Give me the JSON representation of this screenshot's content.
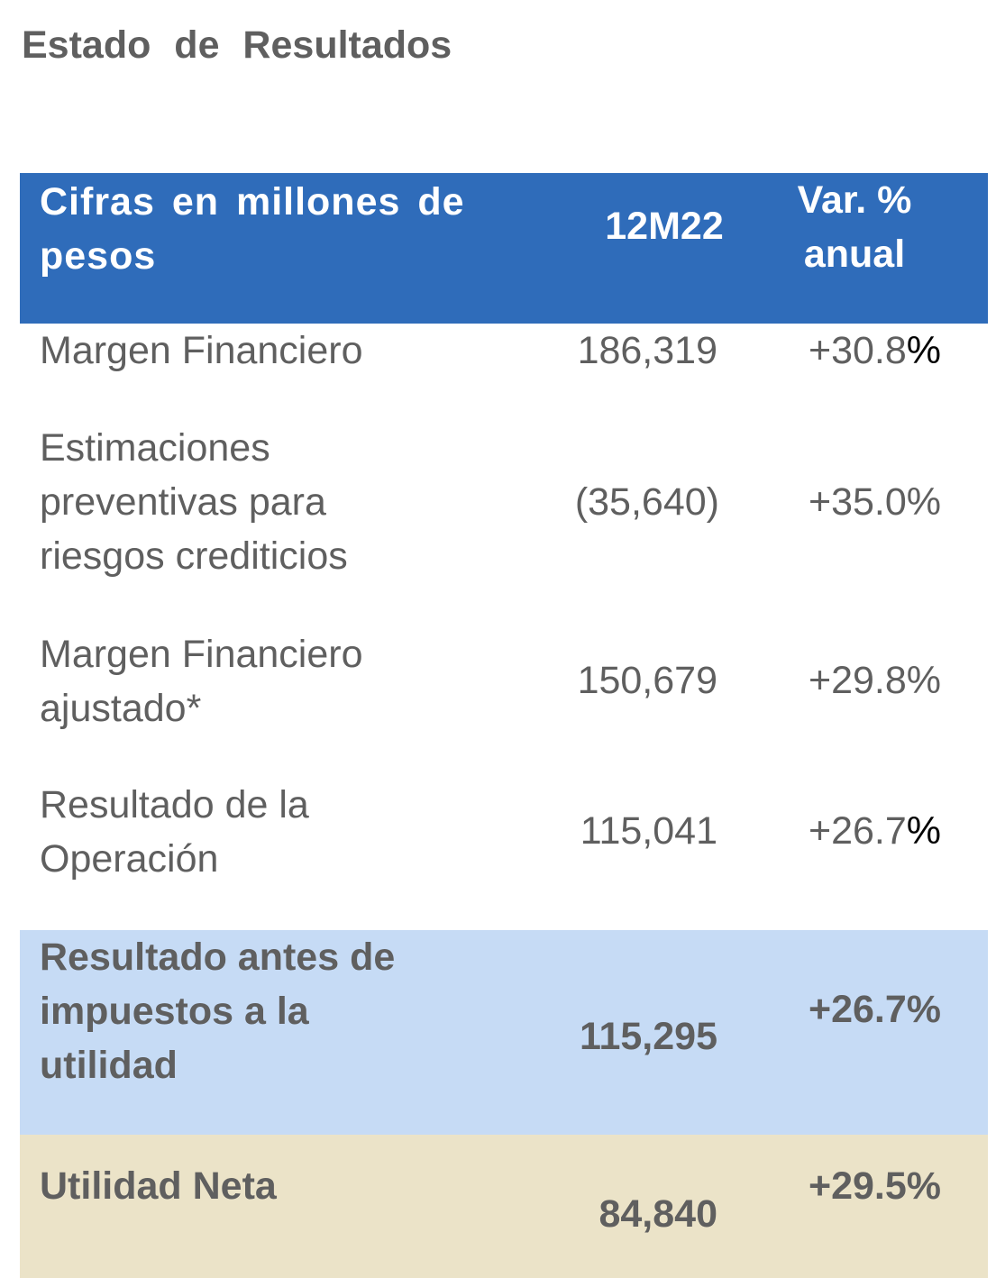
{
  "title": "Estado de Resultados",
  "table": {
    "header": {
      "label_line1": "Cifras en millones de",
      "label_line2": "pesos",
      "period": "12M22",
      "variation_line1": "Var. %",
      "variation_line2": "anual"
    },
    "rows": [
      {
        "label_lines": [
          "Margen Financiero"
        ],
        "value": "186,319",
        "variation": "+30.8",
        "variation_suffix": "%"
      },
      {
        "label_lines": [
          "Estimaciones",
          "preventivas para",
          "riesgos crediticios"
        ],
        "value": "(35,640)",
        "variation": "+35.0%",
        "variation_suffix": ""
      },
      {
        "label_lines": [
          "Margen Financiero",
          "ajustado*"
        ],
        "value": "150,679",
        "variation": "+29.8%",
        "variation_suffix": ""
      },
      {
        "label_lines": [
          "Resultado de la",
          "Operación"
        ],
        "value": "115,041",
        "variation": "+26.7",
        "variation_suffix": "%"
      },
      {
        "label_lines": [
          "Resultado antes de",
          "impuestos a la",
          "utilidad"
        ],
        "value": "115,295",
        "variation": "+26.7%",
        "variation_suffix": ""
      },
      {
        "label_lines": [
          "Utilidad Neta"
        ],
        "value": "84,840",
        "variation": "+29.5%",
        "variation_suffix": ""
      }
    ]
  },
  "colors": {
    "header_bg": "#2f6cba",
    "highlight_blue": "#c6dbf5",
    "highlight_beige": "#ebe3c8",
    "text_gray": "#5f5f5f"
  }
}
